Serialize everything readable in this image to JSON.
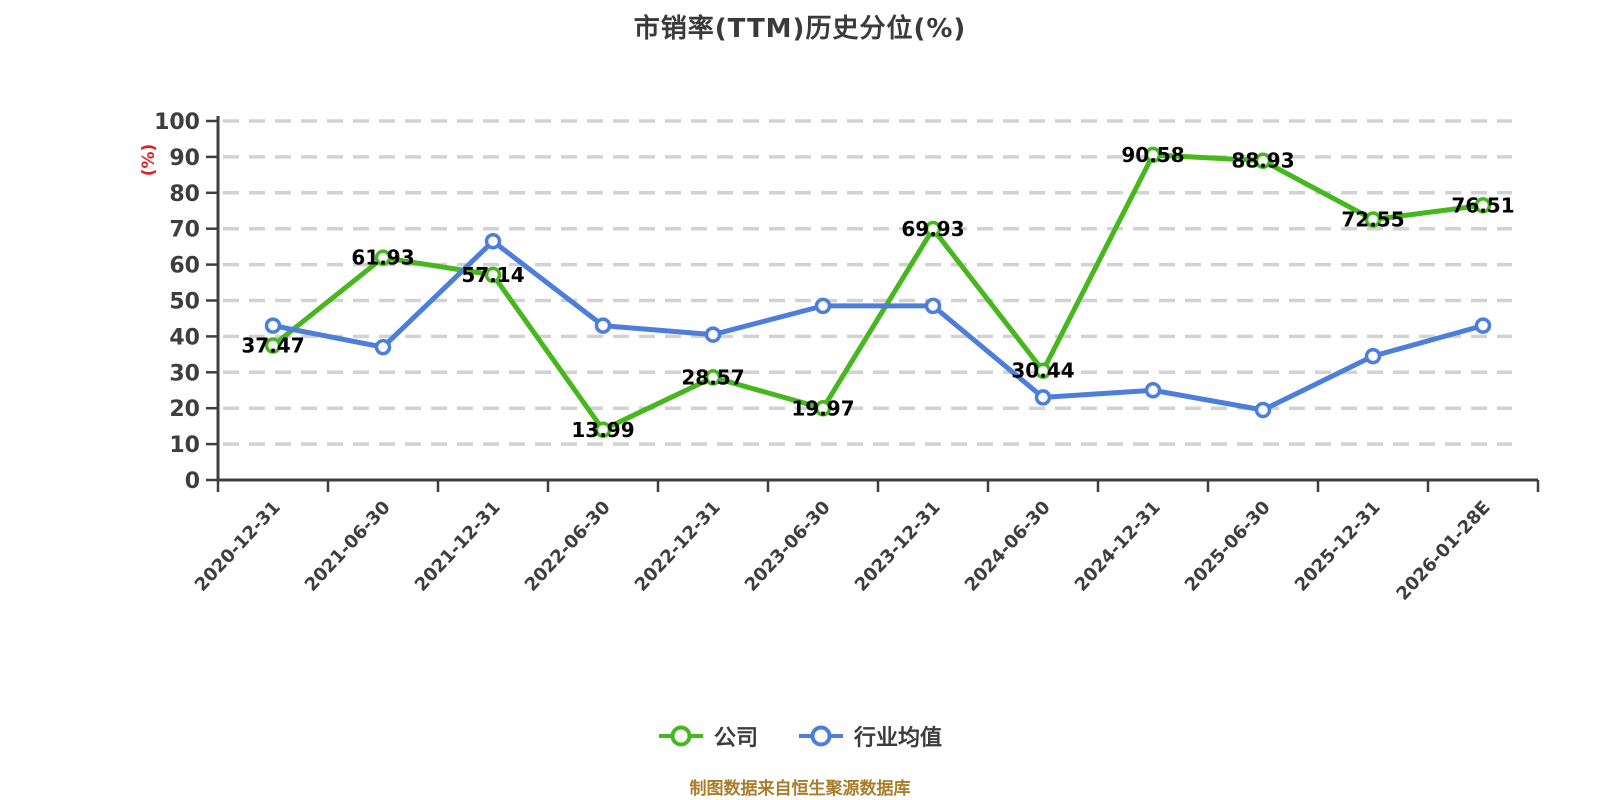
{
  "title": "市销率(TTM)历史分位(%)",
  "source_note": "制图数据来自恒生聚源数据库",
  "colors": {
    "company_line": "#47B71E",
    "industry_line": "#4D7EDB",
    "marker_fill": "#FFFFFF",
    "axis": "#3F3F3F",
    "tick_label": "#3E3E3E",
    "grid": "#D2D2D2",
    "value_label": "#000000",
    "y_axis_name": "#E02020",
    "title": "#3A3A3A",
    "source_note": "#AA7D2A"
  },
  "legend": [
    {
      "id": "company",
      "label": "公司",
      "color": "#47B71E"
    },
    {
      "id": "industry-average",
      "label": "行业均值",
      "color": "#4D7EDB"
    }
  ],
  "chart_data": {
    "type": "line",
    "title": "市销率(TTM)历史分位(%)",
    "xlabel": "",
    "ylabel": "(%)",
    "ylim": [
      0,
      100
    ],
    "y_ticks": [
      0,
      10,
      20,
      30,
      40,
      50,
      60,
      70,
      80,
      90,
      100
    ],
    "grid": "horizontal-dashed",
    "legend_position": "bottom",
    "categories": [
      "2020-12-31",
      "2021-06-30",
      "2021-12-31",
      "2022-06-30",
      "2022-12-31",
      "2023-06-30",
      "2023-12-31",
      "2024-06-30",
      "2024-12-31",
      "2025-06-30",
      "2025-12-31",
      "2026-01-28E"
    ],
    "series": [
      {
        "name": "公司",
        "color": "#47B71E",
        "show_labels": true,
        "values": [
          37.47,
          61.93,
          57.14,
          13.99,
          28.57,
          19.97,
          69.93,
          30.44,
          90.58,
          88.93,
          72.55,
          76.51
        ]
      },
      {
        "name": "行业均值",
        "color": "#4D7EDB",
        "show_labels": false,
        "values": [
          43,
          37,
          66.5,
          43,
          40.5,
          48.5,
          48.5,
          23,
          25,
          19.5,
          34.5,
          43
        ]
      }
    ]
  }
}
